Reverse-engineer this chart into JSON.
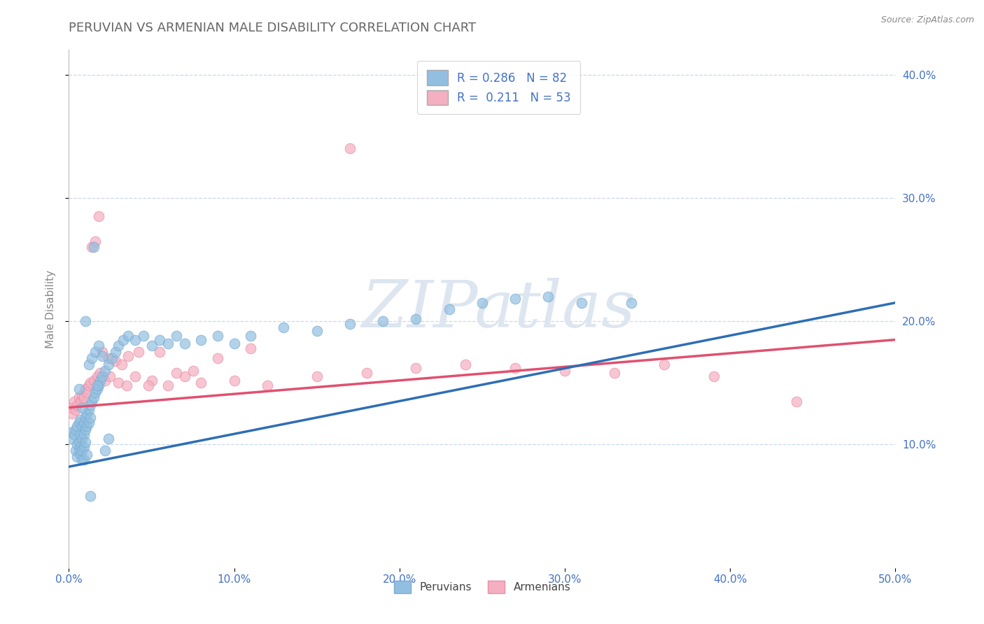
{
  "title": "PERUVIAN VS ARMENIAN MALE DISABILITY CORRELATION CHART",
  "source": "Source: ZipAtlas.com",
  "ylabel": "Male Disability",
  "xlim": [
    0.0,
    0.5
  ],
  "ylim": [
    0.0,
    0.42
  ],
  "xticks": [
    0.0,
    0.1,
    0.2,
    0.3,
    0.4,
    0.5
  ],
  "xtick_labels": [
    "0.0%",
    "10.0%",
    "20.0%",
    "30.0%",
    "40.0%",
    "50.0%"
  ],
  "yticks": [
    0.1,
    0.2,
    0.3,
    0.4
  ],
  "ytick_labels": [
    "10.0%",
    "20.0%",
    "30.0%",
    "40.0%"
  ],
  "peruvian_color": "#92bfe0",
  "armenian_color": "#f4afc0",
  "peruvian_edge": "#7aadd4",
  "armenian_edge": "#e890a8",
  "peruvian_R": 0.286,
  "peruvian_N": 82,
  "armenian_R": 0.211,
  "armenian_N": 53,
  "trend_blue_color": "#2e6eb5",
  "trend_pink_color": "#e05070",
  "watermark": "ZIPatlas",
  "legend_label_peruvian": "Peruvians",
  "legend_label_armenian": "Armenians",
  "background_color": "#ffffff",
  "grid_color": "#c8d8ec",
  "title_color": "#666666",
  "axis_label_color": "#4472c4",
  "peru_trend_x0": 0.0,
  "peru_trend_y0": 0.082,
  "peru_trend_x1": 0.5,
  "peru_trend_y1": 0.215,
  "arm_trend_x0": 0.0,
  "arm_trend_y0": 0.13,
  "arm_trend_x1": 0.5,
  "arm_trend_y1": 0.185,
  "peruvian_x": [
    0.001,
    0.002,
    0.003,
    0.004,
    0.004,
    0.005,
    0.005,
    0.005,
    0.006,
    0.006,
    0.006,
    0.007,
    0.007,
    0.007,
    0.007,
    0.008,
    0.008,
    0.008,
    0.008,
    0.009,
    0.009,
    0.009,
    0.01,
    0.01,
    0.01,
    0.011,
    0.011,
    0.012,
    0.012,
    0.013,
    0.013,
    0.014,
    0.015,
    0.016,
    0.017,
    0.018,
    0.019,
    0.02,
    0.022,
    0.024,
    0.026,
    0.028,
    0.03,
    0.033,
    0.036,
    0.04,
    0.045,
    0.05,
    0.055,
    0.06,
    0.065,
    0.07,
    0.08,
    0.09,
    0.1,
    0.11,
    0.13,
    0.15,
    0.17,
    0.19,
    0.21,
    0.23,
    0.25,
    0.27,
    0.29,
    0.31,
    0.01,
    0.012,
    0.014,
    0.016,
    0.018,
    0.02,
    0.022,
    0.024,
    0.008,
    0.009,
    0.011,
    0.013,
    0.015,
    0.017,
    0.006,
    0.34
  ],
  "peruvian_y": [
    0.11,
    0.105,
    0.108,
    0.112,
    0.095,
    0.115,
    0.1,
    0.09,
    0.118,
    0.102,
    0.095,
    0.12,
    0.108,
    0.098,
    0.092,
    0.115,
    0.105,
    0.095,
    0.088,
    0.118,
    0.108,
    0.098,
    0.122,
    0.112,
    0.102,
    0.125,
    0.115,
    0.128,
    0.118,
    0.132,
    0.122,
    0.135,
    0.138,
    0.142,
    0.145,
    0.148,
    0.152,
    0.155,
    0.16,
    0.165,
    0.17,
    0.175,
    0.18,
    0.185,
    0.188,
    0.185,
    0.188,
    0.18,
    0.185,
    0.182,
    0.188,
    0.182,
    0.185,
    0.188,
    0.182,
    0.188,
    0.195,
    0.192,
    0.198,
    0.2,
    0.202,
    0.21,
    0.215,
    0.218,
    0.22,
    0.215,
    0.2,
    0.165,
    0.17,
    0.175,
    0.18,
    0.172,
    0.095,
    0.105,
    0.13,
    0.088,
    0.092,
    0.058,
    0.26,
    0.148,
    0.145,
    0.215
  ],
  "armenian_x": [
    0.001,
    0.002,
    0.003,
    0.004,
    0.005,
    0.006,
    0.007,
    0.008,
    0.009,
    0.01,
    0.011,
    0.012,
    0.013,
    0.015,
    0.017,
    0.019,
    0.022,
    0.025,
    0.03,
    0.035,
    0.04,
    0.05,
    0.06,
    0.07,
    0.08,
    0.1,
    0.12,
    0.15,
    0.18,
    0.21,
    0.24,
    0.27,
    0.3,
    0.33,
    0.36,
    0.39,
    0.014,
    0.016,
    0.018,
    0.02,
    0.024,
    0.028,
    0.032,
    0.036,
    0.042,
    0.048,
    0.055,
    0.065,
    0.075,
    0.09,
    0.11,
    0.44,
    0.17
  ],
  "armenian_y": [
    0.13,
    0.125,
    0.135,
    0.128,
    0.132,
    0.138,
    0.135,
    0.14,
    0.138,
    0.145,
    0.142,
    0.148,
    0.15,
    0.152,
    0.155,
    0.158,
    0.152,
    0.155,
    0.15,
    0.148,
    0.155,
    0.152,
    0.148,
    0.155,
    0.15,
    0.152,
    0.148,
    0.155,
    0.158,
    0.162,
    0.165,
    0.162,
    0.16,
    0.158,
    0.165,
    0.155,
    0.26,
    0.265,
    0.285,
    0.175,
    0.17,
    0.168,
    0.165,
    0.172,
    0.175,
    0.148,
    0.175,
    0.158,
    0.16,
    0.17,
    0.178,
    0.135,
    0.34
  ]
}
